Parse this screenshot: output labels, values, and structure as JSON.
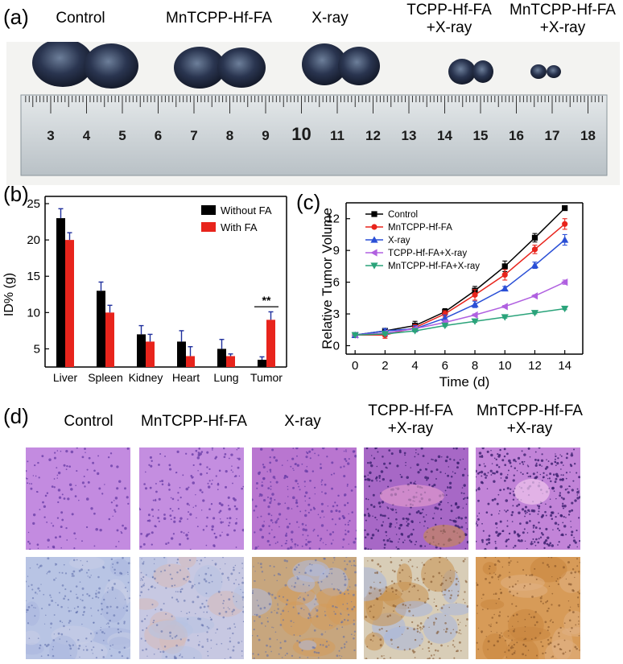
{
  "panel_a": {
    "letter": "(a)",
    "groups": [
      {
        "line1": "Control",
        "line2": ""
      },
      {
        "line1": "MnTCPP-Hf-FA",
        "line2": ""
      },
      {
        "line1": "X-ray",
        "line2": ""
      },
      {
        "line1": "TCPP-Hf-FA",
        "line2": "+X-ray"
      },
      {
        "line1": "MnTCPP-Hf-FA",
        "line2": "+X-ray"
      }
    ],
    "ruler_numbers": [
      "3",
      "4",
      "5",
      "6",
      "7",
      "8",
      "9",
      "10",
      "11",
      "12",
      "13",
      "14",
      "15",
      "16",
      "17",
      "18"
    ]
  },
  "panel_d": {
    "letter": "(d)",
    "groups": [
      {
        "line1": "Control",
        "line2": ""
      },
      {
        "line1": "MnTCPP-Hf-FA",
        "line2": ""
      },
      {
        "line1": "X-ray",
        "line2": ""
      },
      {
        "line1": "TCPP-Hf-FA",
        "line2": "+X-ray"
      },
      {
        "line1": "MnTCPP-Hf-FA",
        "line2": "+X-ray"
      }
    ]
  },
  "colors": {
    "without_fa": "#000000",
    "with_fa": "#e8241c",
    "error_bar_b": "#1f2f9c",
    "control": "#000000",
    "mn": "#e8241c",
    "xray": "#2a4fd6",
    "tcpp": "#b060e0",
    "mntcpp_x": "#2aa37a",
    "he_stain": "#b86fd1",
    "ihc_blue": "#a9b4d9",
    "ihc_brown": "#c98a4c"
  },
  "chart_data": [
    {
      "id": "b",
      "letter": "(b)",
      "type": "bar",
      "ylabel": "ID% (g)",
      "xlabel": "",
      "ylim": [
        2.5,
        26
      ],
      "yticks": [
        "5",
        "10",
        "15",
        "20",
        "25"
      ],
      "categories": [
        "Liver",
        "Spleen",
        "Kidney",
        "Heart",
        "Lung",
        "Tumor"
      ],
      "series": [
        {
          "name": "Without FA",
          "values": [
            23,
            13,
            7,
            6,
            5,
            3.5
          ],
          "errors": [
            1.3,
            1.2,
            1.2,
            1.5,
            1.3,
            0.4
          ]
        },
        {
          "name": "With FA",
          "values": [
            20,
            10,
            6,
            4,
            4,
            9
          ],
          "errors": [
            1.0,
            1.0,
            1.0,
            1.3,
            0.3,
            1.1
          ]
        }
      ],
      "legend_position": "top-right",
      "annotation": "**"
    },
    {
      "id": "c",
      "letter": "(c)",
      "type": "line",
      "xlabel": "Time (d)",
      "ylabel": "Relative Tumor Volume",
      "x": [
        0,
        2,
        4,
        6,
        8,
        10,
        12,
        14
      ],
      "xticks": [
        "0",
        "2",
        "4",
        "6",
        "8",
        "10",
        "12",
        "14"
      ],
      "yticks": [
        "0",
        "3",
        "6",
        "9",
        "12"
      ],
      "xlim": [
        -0.6,
        15.2
      ],
      "ylim": [
        -0.8,
        13.5
      ],
      "series": [
        {
          "name": "Control",
          "marker": "square",
          "values": [
            1,
            1.4,
            1.9,
            3.2,
            5.2,
            7.5,
            10.2,
            13.0
          ],
          "errors": [
            0.1,
            0.2,
            0.4,
            0.3,
            0.4,
            0.5,
            0.4,
            0.2
          ]
        },
        {
          "name": "MnTCPP-Hf-FA",
          "marker": "circle",
          "values": [
            1,
            1.0,
            1.7,
            3.0,
            4.8,
            6.7,
            9.1,
            11.5
          ],
          "errors": [
            0.1,
            0.3,
            0.3,
            0.3,
            0.5,
            0.5,
            0.4,
            0.5
          ]
        },
        {
          "name": "X-ray",
          "marker": "triangle",
          "values": [
            1,
            1.4,
            1.6,
            2.6,
            3.9,
            5.4,
            7.6,
            10.0
          ],
          "errors": [
            0.1,
            0.2,
            0.3,
            0.3,
            0.3,
            0.2,
            0.3,
            0.5
          ]
        },
        {
          "name": "TCPP-Hf-FA+X-ray",
          "marker": "triangle-left",
          "values": [
            1,
            1.2,
            1.6,
            2.2,
            2.9,
            3.7,
            4.7,
            6.0
          ],
          "errors": [
            0.1,
            0.1,
            0.1,
            0.2,
            0.1,
            0.1,
            0.1,
            0.2
          ]
        },
        {
          "name": "MnTCPP-Hf-FA+X-ray",
          "marker": "triangle-down",
          "values": [
            1,
            1.1,
            1.4,
            1.9,
            2.3,
            2.7,
            3.1,
            3.5
          ],
          "errors": [
            0.05,
            0.1,
            0.1,
            0.1,
            0.1,
            0.1,
            0.1,
            0.1
          ]
        }
      ],
      "legend_position": "top-left"
    }
  ]
}
